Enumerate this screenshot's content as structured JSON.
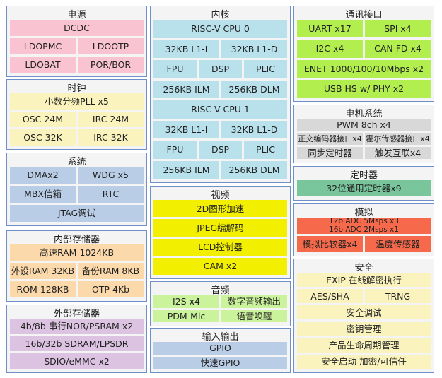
{
  "sections": [
    {
      "title": "电源",
      "rows": [
        [
          "DCDC"
        ],
        [
          "LDOPMC",
          "LDOOTP"
        ],
        [
          "LDOBAT",
          "POR/BOR"
        ]
      ]
    },
    {
      "title": "时钟",
      "rows": [
        [
          "小数分频PLL x5"
        ],
        [
          "OSC 24M",
          "IRC 24M"
        ],
        [
          "OSC 32K",
          "IRC 32K"
        ]
      ]
    },
    {
      "title": "系统",
      "rows": [
        [
          "DMAx2",
          "WDG x5"
        ],
        [
          "MBX信箱",
          "RTC"
        ],
        [
          "JTAG调试"
        ]
      ]
    },
    {
      "title": "内部存储器",
      "rows": [
        [
          "高速RAM 1024KB"
        ],
        [
          "外设RAM 32KB",
          "备份RAM 8KB"
        ],
        [
          "ROM 128KB",
          "OTP 4Kb"
        ]
      ]
    },
    {
      "title": "外部存储器",
      "rows": [
        [
          "4b/8b 串行NOR/PSRAM x2"
        ],
        [
          "16b/32b SDRAM/LPSDR"
        ],
        [
          "SDIO/eMMC x2"
        ]
      ]
    },
    {
      "title": "内核",
      "rows": [
        [
          "RISC-V CPU 0"
        ],
        [
          "32KB L1-I",
          "32KB L1-D"
        ],
        [
          "FPU",
          "DSP",
          "PLIC"
        ],
        [
          "256KB ILM",
          "256KB DLM"
        ],
        [
          "RISC-V CPU 1"
        ],
        [
          "32KB L1-I",
          "32KB L1-D"
        ],
        [
          "FPU",
          "DSP",
          "PLIC"
        ],
        [
          "256KB ILM",
          "256KB DLM"
        ]
      ]
    },
    {
      "title": "视频",
      "rows": [
        [
          "2D图形加速"
        ],
        [
          "JPEG编解码"
        ],
        [
          "LCD控制器"
        ],
        [
          "CAM x2"
        ]
      ]
    },
    {
      "title": "音频",
      "rows": [
        [
          "I2S x4",
          "数字音频输出"
        ],
        [
          "PDM-Mic",
          "语音唤醒"
        ]
      ]
    },
    {
      "title": "输入输出",
      "rows": [
        [
          "GPIO"
        ],
        [
          "快速GPIO"
        ]
      ]
    },
    {
      "title": "通讯接口",
      "rows": [
        [
          "UART x17",
          "SPI x4"
        ],
        [
          "I2C x4",
          "CAN FD x4"
        ],
        [
          "ENET 1000/100/10Mbps x2"
        ],
        [
          "USB HS w/ PHY x2"
        ]
      ]
    },
    {
      "title": "电机系统",
      "rows": [
        [
          "PWM 8ch x4"
        ],
        [
          "正交编码器接口x4",
          "霍尔传感器接口x4"
        ],
        [
          "同步定时器",
          "触发互联x4"
        ]
      ]
    },
    {
      "title": "定时器",
      "rows": [
        [
          "32位通用定时器x9"
        ]
      ]
    },
    {
      "title": "模拟",
      "rows": [
        [
          "12b ADC 5Msps x3\n16b ADC 2Msps x1"
        ],
        [
          "模拟比较器x4",
          "温度传感器"
        ]
      ]
    },
    {
      "title": "安全",
      "rows": [
        [
          "EXIP 在线解密执行"
        ],
        [
          "AES/SHA",
          "TRNG"
        ],
        [
          "安全调试"
        ],
        [
          "密钥管理"
        ],
        [
          "产品生命周期管理"
        ],
        [
          "安全启动 加密/可信任"
        ]
      ]
    }
  ]
}
